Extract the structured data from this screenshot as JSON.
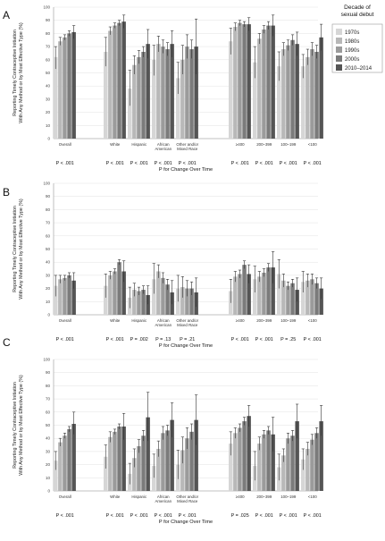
{
  "colors": {
    "decades": [
      "#d6d6d6",
      "#b8b8b8",
      "#9b9b9b",
      "#7b7b7b",
      "#555555"
    ],
    "axis": "#b0b0b0",
    "grid": "#e2e2e2",
    "errbar": "#333333"
  },
  "legend": {
    "title": "Decade of sexual debut",
    "items": [
      "1970s",
      "1980s",
      "1990s",
      "2000s",
      "2010–2014"
    ]
  },
  "groups": [
    "Overall",
    "White",
    "Hispanic",
    "African American",
    "Other and/or Mixed Race",
    "≥400",
    "200–399",
    "100–199",
    "<100"
  ],
  "chart_data": [
    {
      "type": "bar",
      "panel": "A",
      "ylabel": "Reporting Timely Contraceptive Initiation With Any Method or by Most Effective Type (%)",
      "xlabel": "P for Change Over Time",
      "ylim": [
        0,
        100
      ],
      "yticks": [
        0,
        10,
        20,
        30,
        40,
        50,
        60,
        70,
        80,
        90,
        100
      ],
      "categories": [
        "Overall",
        "White",
        "Hispanic",
        "African American",
        "Other and/or Mixed Race",
        "≥400",
        "200–399",
        "100–199",
        "<100"
      ],
      "series": [
        {
          "name": "1970s",
          "values": [
            62,
            66,
            38,
            60,
            46,
            74,
            58,
            55,
            55
          ],
          "ci_low": [
            53,
            55,
            25,
            48,
            34,
            64,
            46,
            44,
            46
          ],
          "ci_high": [
            70,
            77,
            52,
            71,
            58,
            84,
            70,
            66,
            64
          ]
        },
        {
          "name": "1980s",
          "values": [
            74,
            82,
            56,
            72,
            60,
            85,
            76,
            68,
            62
          ],
          "ci_low": [
            71,
            79,
            49,
            66,
            49,
            82,
            72,
            63,
            56
          ],
          "ci_high": [
            77,
            85,
            63,
            78,
            71,
            88,
            80,
            73,
            68
          ]
        },
        {
          "name": "1990s",
          "values": [
            77,
            86,
            62,
            70,
            70,
            88,
            83,
            71,
            68
          ],
          "ci_low": [
            75,
            84,
            57,
            65,
            61,
            86,
            80,
            67,
            63
          ],
          "ci_high": [
            79,
            88,
            67,
            75,
            79,
            90,
            86,
            75,
            73
          ]
        },
        {
          "name": "2000s",
          "values": [
            80,
            88,
            66,
            68,
            68,
            87,
            86,
            75,
            66
          ],
          "ci_low": [
            78,
            86,
            62,
            63,
            61,
            85,
            83,
            71,
            61
          ],
          "ci_high": [
            82,
            90,
            70,
            73,
            75,
            89,
            89,
            79,
            71
          ]
        },
        {
          "name": "2010–2014",
          "values": [
            81,
            89,
            72,
            72,
            70,
            87,
            86,
            72,
            77
          ],
          "ci_low": [
            76,
            84,
            61,
            62,
            49,
            82,
            78,
            63,
            67
          ],
          "ci_high": [
            86,
            94,
            83,
            82,
            91,
            92,
            94,
            81,
            87
          ]
        }
      ],
      "p_values": [
        "P < .001",
        "P < .001",
        "P < .001",
        "P < .001",
        "P < .001",
        "P < .001",
        "P < .001",
        "P < .001",
        "P < .001"
      ]
    },
    {
      "type": "bar",
      "panel": "B",
      "ylabel": "Reporting Timely Contraceptive Initiation With Any Method or by Most Effective Type (%)",
      "xlabel": "P for Change Over Time",
      "ylim": [
        0,
        100
      ],
      "yticks": [
        0,
        10,
        20,
        30,
        40,
        50,
        60,
        70,
        80,
        90,
        100
      ],
      "categories": [
        "Overall",
        "White",
        "Hispanic",
        "African American",
        "Other and/or Mixed Race",
        "≥400",
        "200–399",
        "100–199",
        "<100"
      ],
      "series": [
        {
          "name": "1970s",
          "values": [
            22,
            22,
            13,
            27,
            20,
            18,
            27,
            31,
            25
          ],
          "ci_low": [
            14,
            13,
            5,
            16,
            10,
            9,
            17,
            20,
            17
          ],
          "ci_high": [
            30,
            31,
            21,
            39,
            30,
            27,
            37,
            42,
            33
          ]
        },
        {
          "name": "1980s",
          "values": [
            27,
            30,
            19,
            33,
            21,
            29,
            29,
            26,
            26
          ],
          "ci_low": [
            24,
            27,
            14,
            28,
            13,
            25,
            25,
            21,
            21
          ],
          "ci_high": [
            30,
            33,
            24,
            38,
            29,
            33,
            33,
            31,
            31
          ]
        },
        {
          "name": "1990s",
          "values": [
            28,
            33,
            18,
            28,
            20,
            31,
            32,
            22,
            27
          ],
          "ci_low": [
            26,
            31,
            15,
            24,
            14,
            28,
            29,
            19,
            23
          ],
          "ci_high": [
            30,
            35,
            21,
            32,
            26,
            34,
            35,
            25,
            31
          ]
        },
        {
          "name": "2000s",
          "values": [
            30,
            40,
            19,
            23,
            20,
            38,
            36,
            24,
            24
          ],
          "ci_low": [
            28,
            38,
            16,
            19,
            15,
            35,
            33,
            21,
            20
          ],
          "ci_high": [
            32,
            42,
            22,
            27,
            25,
            41,
            39,
            27,
            28
          ]
        },
        {
          "name": "2010–2014",
          "values": [
            26,
            33,
            15,
            17,
            17,
            31,
            36,
            19,
            20
          ],
          "ci_low": [
            20,
            25,
            8,
            8,
            6,
            24,
            24,
            10,
            12
          ],
          "ci_high": [
            32,
            41,
            22,
            26,
            28,
            38,
            48,
            28,
            28
          ]
        }
      ],
      "p_values": [
        "P < .001",
        "P < .001",
        "P = .002",
        "P = .13",
        "P = .21",
        "P < .001",
        "P < .001",
        "P = .25",
        "P < .001"
      ]
    },
    {
      "type": "bar",
      "panel": "C",
      "ylabel": "Reporting Timely Contraceptive Initiation With Any Method or by Most Effective Type (%)",
      "xlabel": "P for Change Over Time",
      "ylim": [
        0,
        100
      ],
      "yticks": [
        0,
        10,
        20,
        30,
        40,
        50,
        60,
        70,
        80,
        90,
        100
      ],
      "categories": [
        "Overall",
        "White",
        "Hispanic",
        "African American",
        "Other and/or Mixed Race",
        "≥400",
        "200–399",
        "100–199",
        "<100"
      ],
      "series": [
        {
          "name": "1970s",
          "values": [
            23,
            26,
            13,
            19,
            20,
            36,
            19,
            18,
            24
          ],
          "ci_low": [
            16,
            17,
            5,
            10,
            9,
            27,
            8,
            8,
            16
          ],
          "ci_high": [
            30,
            35,
            21,
            28,
            31,
            45,
            30,
            28,
            32
          ]
        },
        {
          "name": "1980s",
          "values": [
            37,
            41,
            25,
            32,
            31,
            44,
            36,
            27,
            32
          ],
          "ci_low": [
            34,
            37,
            18,
            26,
            21,
            40,
            31,
            22,
            27
          ],
          "ci_high": [
            40,
            45,
            32,
            38,
            41,
            48,
            41,
            32,
            37
          ]
        },
        {
          "name": "1990s",
          "values": [
            42,
            45,
            34,
            44,
            40,
            48,
            43,
            40,
            39
          ],
          "ci_low": [
            40,
            43,
            29,
            39,
            32,
            45,
            40,
            36,
            35
          ],
          "ci_high": [
            44,
            47,
            39,
            49,
            48,
            51,
            46,
            44,
            43
          ]
        },
        {
          "name": "2000s",
          "values": [
            47,
            49,
            42,
            46,
            45,
            53,
            46,
            42,
            44
          ],
          "ci_low": [
            45,
            47,
            38,
            42,
            39,
            50,
            43,
            38,
            40
          ],
          "ci_high": [
            49,
            51,
            46,
            50,
            51,
            56,
            49,
            46,
            48
          ]
        },
        {
          "name": "2010–2014",
          "values": [
            51,
            49,
            56,
            54,
            54,
            57,
            43,
            53,
            53
          ],
          "ci_low": [
            43,
            39,
            38,
            41,
            35,
            49,
            30,
            40,
            42
          ],
          "ci_high": [
            60,
            59,
            75,
            67,
            73,
            65,
            56,
            66,
            65
          ]
        }
      ],
      "p_values": [
        "P < .001",
        "P < .001",
        "P < .001",
        "P < .001",
        "P < .001",
        "P = .025",
        "P < .001",
        "P < .001",
        "P < .001"
      ]
    }
  ]
}
